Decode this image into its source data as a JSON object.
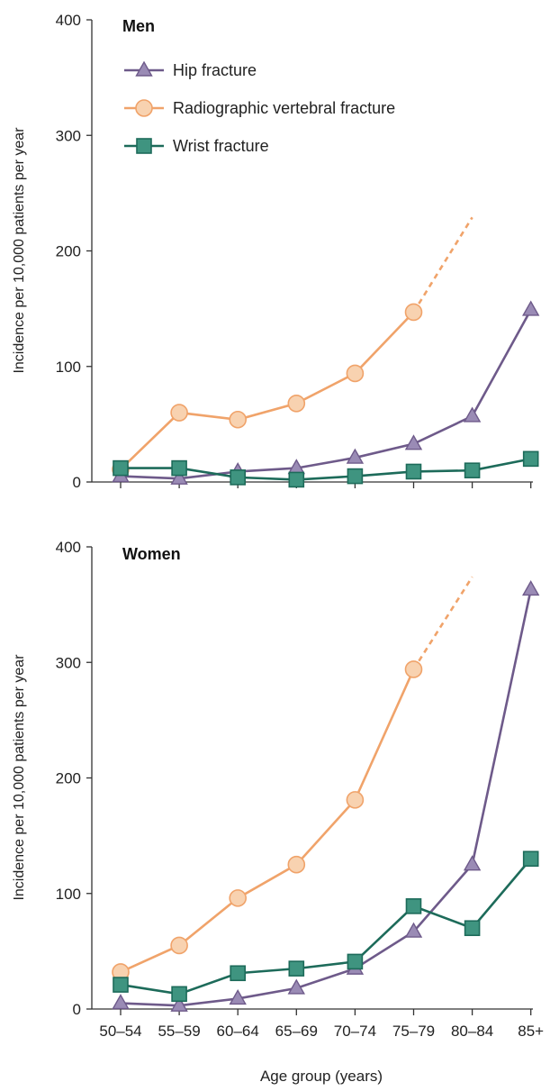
{
  "chart_data": [
    {
      "type": "line",
      "title": "Men",
      "ylabel": "Incidence per 10,000 patients per year",
      "xlabel": "",
      "categories": [
        "50–54",
        "55–59",
        "60–64",
        "65–69",
        "70–74",
        "75–79",
        "80–84",
        "85+"
      ],
      "ylim": [
        0,
        400
      ],
      "yticks": [
        0,
        100,
        200,
        300,
        400
      ],
      "show_xtick_labels": false,
      "legend": "top-left",
      "series": [
        {
          "name": "Hip fracture",
          "marker": "triangle",
          "color": "#6e5a8a",
          "fill": "#9a8bb5",
          "values": [
            5,
            3,
            9,
            12,
            21,
            33,
            57,
            149
          ]
        },
        {
          "name": "Radiographic vertebral fracture",
          "marker": "circle",
          "color": "#f0a36a",
          "fill": "#f8d2b0",
          "values": [
            11,
            60,
            54,
            68,
            94,
            147,
            null,
            null
          ],
          "extrapolated_to": 229
        },
        {
          "name": "Wrist fracture",
          "marker": "square",
          "color": "#1d6b5a",
          "fill": "#3f9480",
          "values": [
            12,
            12,
            4,
            2,
            5,
            9,
            10,
            20
          ]
        }
      ]
    },
    {
      "type": "line",
      "title": "Women",
      "ylabel": "Incidence per 10,000 patients per year",
      "xlabel": "Age group (years)",
      "categories": [
        "50–54",
        "55–59",
        "60–64",
        "65–69",
        "70–74",
        "75–79",
        "80–84",
        "85+"
      ],
      "ylim": [
        0,
        400
      ],
      "yticks": [
        0,
        100,
        200,
        300,
        400
      ],
      "show_xtick_labels": true,
      "series": [
        {
          "name": "Hip fracture",
          "marker": "triangle",
          "color": "#6e5a8a",
          "fill": "#9a8bb5",
          "values": [
            5,
            3,
            9,
            18,
            35,
            67,
            125,
            363
          ]
        },
        {
          "name": "Radiographic vertebral fracture",
          "marker": "circle",
          "color": "#f0a36a",
          "fill": "#f8d2b0",
          "values": [
            32,
            55,
            96,
            125,
            181,
            294,
            null,
            null
          ],
          "extrapolated_to": 374
        },
        {
          "name": "Wrist fracture",
          "marker": "square",
          "color": "#1d6b5a",
          "fill": "#3f9480",
          "values": [
            21,
            13,
            31,
            35,
            41,
            89,
            70,
            130
          ]
        }
      ]
    }
  ]
}
